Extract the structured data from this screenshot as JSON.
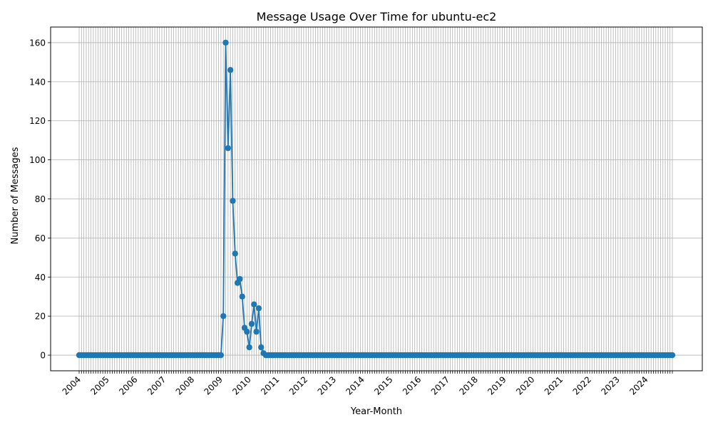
{
  "chart_data": {
    "type": "line",
    "title": "Message Usage Over Time for ubuntu-ec2",
    "xlabel": "Year-Month",
    "ylabel": "Number of Messages",
    "x_start": "2004-01",
    "x_end": "2024-12",
    "ylim": [
      -8,
      168
    ],
    "yticks": [
      0,
      20,
      40,
      60,
      80,
      100,
      120,
      140,
      160
    ],
    "xtick_labels": [
      "2004",
      "2005",
      "2006",
      "2007",
      "2008",
      "2009",
      "2010",
      "2011",
      "2012",
      "2013",
      "2014",
      "2015",
      "2016",
      "2017",
      "2018",
      "2019",
      "2020",
      "2021",
      "2022",
      "2023",
      "2024"
    ],
    "grid": true,
    "legend": "none",
    "color": "#1f77b4",
    "series": [
      {
        "points": [
          {
            "x": "2009-02",
            "y": 20
          },
          {
            "x": "2009-03",
            "y": 160
          },
          {
            "x": "2009-04",
            "y": 106
          },
          {
            "x": "2009-05",
            "y": 146
          },
          {
            "x": "2009-06",
            "y": 79
          },
          {
            "x": "2009-07",
            "y": 52
          },
          {
            "x": "2009-08",
            "y": 37
          },
          {
            "x": "2009-09",
            "y": 39
          },
          {
            "x": "2009-10",
            "y": 30
          },
          {
            "x": "2009-11",
            "y": 14
          },
          {
            "x": "2009-12",
            "y": 12
          },
          {
            "x": "2010-01",
            "y": 4
          },
          {
            "x": "2010-02",
            "y": 16
          },
          {
            "x": "2010-03",
            "y": 26
          },
          {
            "x": "2010-04",
            "y": 12
          },
          {
            "x": "2010-05",
            "y": 24
          },
          {
            "x": "2010-06",
            "y": 4
          },
          {
            "x": "2010-07",
            "y": 1
          }
        ],
        "default_y": 0
      }
    ]
  }
}
